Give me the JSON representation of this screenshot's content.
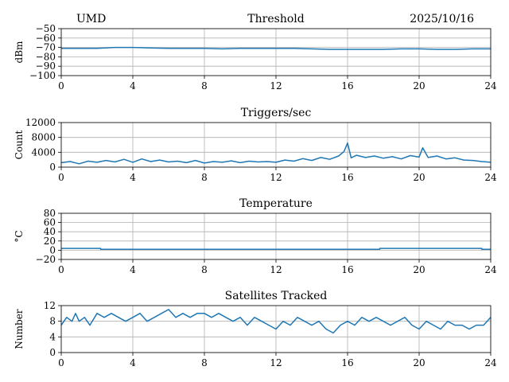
{
  "header": {
    "left": "UMD",
    "center": "Threshold",
    "right": "2025/10/16"
  },
  "colors": {
    "series": "#1f77b4",
    "grid": "#b0b0b0"
  },
  "chart_data": [
    {
      "type": "line",
      "title": "Threshold",
      "xlabel": "",
      "ylabel": "dBm",
      "xlim": [
        0,
        24
      ],
      "ylim": [
        -100,
        -50
      ],
      "xticks": [
        0,
        4,
        8,
        12,
        16,
        20,
        24
      ],
      "yticks": [
        -100,
        -90,
        -80,
        -70,
        -60,
        -50
      ],
      "yticklabels": [
        "−100",
        "−90",
        "−80",
        "−70",
        "−60",
        "−50"
      ],
      "grid": true,
      "series": [
        {
          "x": [
            0,
            1,
            2,
            3,
            4,
            5,
            6,
            7,
            8,
            9,
            10,
            11,
            12,
            13,
            14,
            15,
            16,
            17,
            18,
            19,
            20,
            21,
            22,
            23,
            24
          ],
          "y": [
            -71,
            -71,
            -71,
            -70,
            -70,
            -70.5,
            -71,
            -71,
            -71,
            -71.5,
            -71,
            -71,
            -71,
            -71,
            -71.5,
            -72,
            -72,
            -72,
            -72,
            -71.5,
            -71.5,
            -72,
            -72,
            -71.5,
            -71.5
          ]
        }
      ]
    },
    {
      "type": "line",
      "title": "Triggers/sec",
      "xlabel": "",
      "ylabel": "Count",
      "xlim": [
        0,
        24
      ],
      "ylim": [
        0,
        12000
      ],
      "xticks": [
        0,
        4,
        8,
        12,
        16,
        20,
        24
      ],
      "yticks": [
        0,
        4000,
        8000,
        12000
      ],
      "yticklabels": [
        "0",
        "4000",
        "8000",
        "12000"
      ],
      "grid": true,
      "series": [
        {
          "x": [
            0,
            0.5,
            1,
            1.5,
            2,
            2.5,
            3,
            3.5,
            4,
            4.5,
            5,
            5.5,
            6,
            6.5,
            7,
            7.5,
            8,
            8.5,
            9,
            9.5,
            10,
            10.5,
            11,
            11.5,
            12,
            12.5,
            13,
            13.5,
            14,
            14.5,
            15,
            15.5,
            15.8,
            16,
            16.2,
            16.5,
            17,
            17.5,
            18,
            18.5,
            19,
            19.5,
            20,
            20.2,
            20.5,
            21,
            21.5,
            22,
            22.5,
            23,
            23.5,
            24
          ],
          "y": [
            1200,
            1500,
            900,
            1600,
            1300,
            1800,
            1400,
            2100,
            1300,
            2200,
            1500,
            1900,
            1400,
            1600,
            1200,
            1800,
            1100,
            1500,
            1300,
            1700,
            1200,
            1600,
            1400,
            1500,
            1300,
            1900,
            1600,
            2300,
            1800,
            2600,
            2100,
            3000,
            4200,
            6500,
            2500,
            3200,
            2600,
            3000,
            2400,
            2800,
            2200,
            3100,
            2700,
            5200,
            2600,
            3000,
            2200,
            2500,
            1900,
            1800,
            1500,
            1300
          ]
        }
      ]
    },
    {
      "type": "line",
      "title": "Temperature",
      "xlabel": "",
      "ylabel": "°C",
      "xlim": [
        0,
        24
      ],
      "ylim": [
        -20,
        80
      ],
      "xticks": [
        0,
        4,
        8,
        12,
        16,
        20,
        24
      ],
      "yticks": [
        -20,
        0,
        20,
        40,
        60,
        80
      ],
      "yticklabels": [
        "−20",
        "0",
        "20",
        "40",
        "60",
        "80"
      ],
      "grid": true,
      "series": [
        {
          "x": [
            0,
            2.2,
            2.2,
            17.8,
            17.8,
            23.5,
            23.5,
            24
          ],
          "y": [
            4,
            4,
            2,
            2,
            4,
            4,
            2,
            2
          ]
        }
      ]
    },
    {
      "type": "line",
      "title": "Satellites Tracked",
      "xlabel": "",
      "ylabel": "Number",
      "xlim": [
        0,
        24
      ],
      "ylim": [
        0,
        12
      ],
      "xticks": [
        0,
        4,
        8,
        12,
        16,
        20,
        24
      ],
      "yticks": [
        0,
        4,
        8,
        12
      ],
      "yticklabels": [
        "0",
        "4",
        "8",
        "12"
      ],
      "grid": true,
      "series": [
        {
          "x": [
            0,
            0.3,
            0.6,
            0.8,
            1.0,
            1.3,
            1.6,
            2.0,
            2.4,
            2.8,
            3.2,
            3.6,
            4.0,
            4.4,
            4.8,
            5.2,
            5.6,
            6.0,
            6.4,
            6.8,
            7.2,
            7.6,
            8.0,
            8.4,
            8.8,
            9.2,
            9.6,
            10.0,
            10.4,
            10.8,
            11.2,
            11.6,
            12.0,
            12.4,
            12.8,
            13.2,
            13.6,
            14.0,
            14.4,
            14.8,
            15.2,
            15.6,
            16.0,
            16.4,
            16.8,
            17.2,
            17.6,
            18.0,
            18.4,
            18.8,
            19.2,
            19.6,
            20.0,
            20.4,
            20.8,
            21.2,
            21.6,
            22.0,
            22.4,
            22.8,
            23.2,
            23.6,
            24
          ],
          "y": [
            7,
            9,
            8,
            10,
            8,
            9,
            7,
            10,
            9,
            10,
            9,
            8,
            9,
            10,
            8,
            9,
            10,
            11,
            9,
            10,
            9,
            10,
            10,
            9,
            10,
            9,
            8,
            9,
            7,
            9,
            8,
            7,
            6,
            8,
            7,
            9,
            8,
            7,
            8,
            6,
            5,
            7,
            8,
            7,
            9,
            8,
            9,
            8,
            7,
            8,
            9,
            7,
            6,
            8,
            7,
            6,
            8,
            7,
            7,
            6,
            7,
            7,
            9
          ]
        }
      ]
    }
  ]
}
